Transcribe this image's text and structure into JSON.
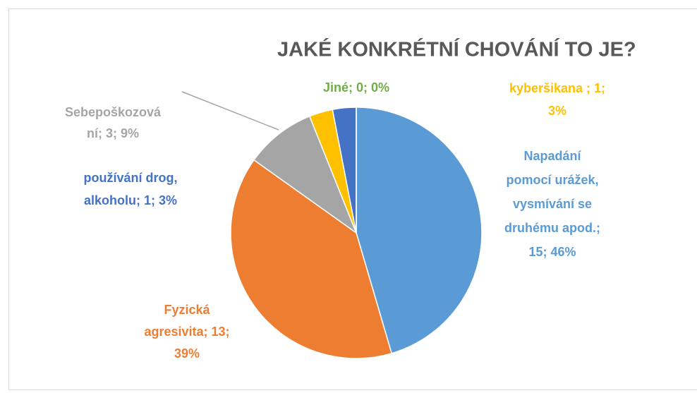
{
  "chart_data": {
    "type": "pie",
    "title": "JAKÉ KONKRÉTNÍ CHOVÁNÍ TO JE?",
    "values": [
      15,
      13,
      3,
      1,
      1,
      0
    ],
    "value_labels": [
      [
        "Napadání",
        "pomocí urážek,",
        "vysmívání se",
        "druhému apod.;",
        "15; 46%"
      ],
      [
        "Fyzická",
        "agresivita; 13;",
        "39%"
      ],
      [
        "Sebepoškozová",
        "ní; 3; 9%"
      ],
      [
        "kyberšikana ; 1;",
        "3%"
      ],
      [
        "používání drog,",
        "alkoholu; 1; 3%"
      ],
      [
        "Jiné; 0; 0%"
      ]
    ],
    "colors": [
      "#5b9bd5",
      "#ed7d31",
      "#a5a5a5",
      "#ffc000",
      "#4472c4",
      "#70ad47"
    ]
  }
}
